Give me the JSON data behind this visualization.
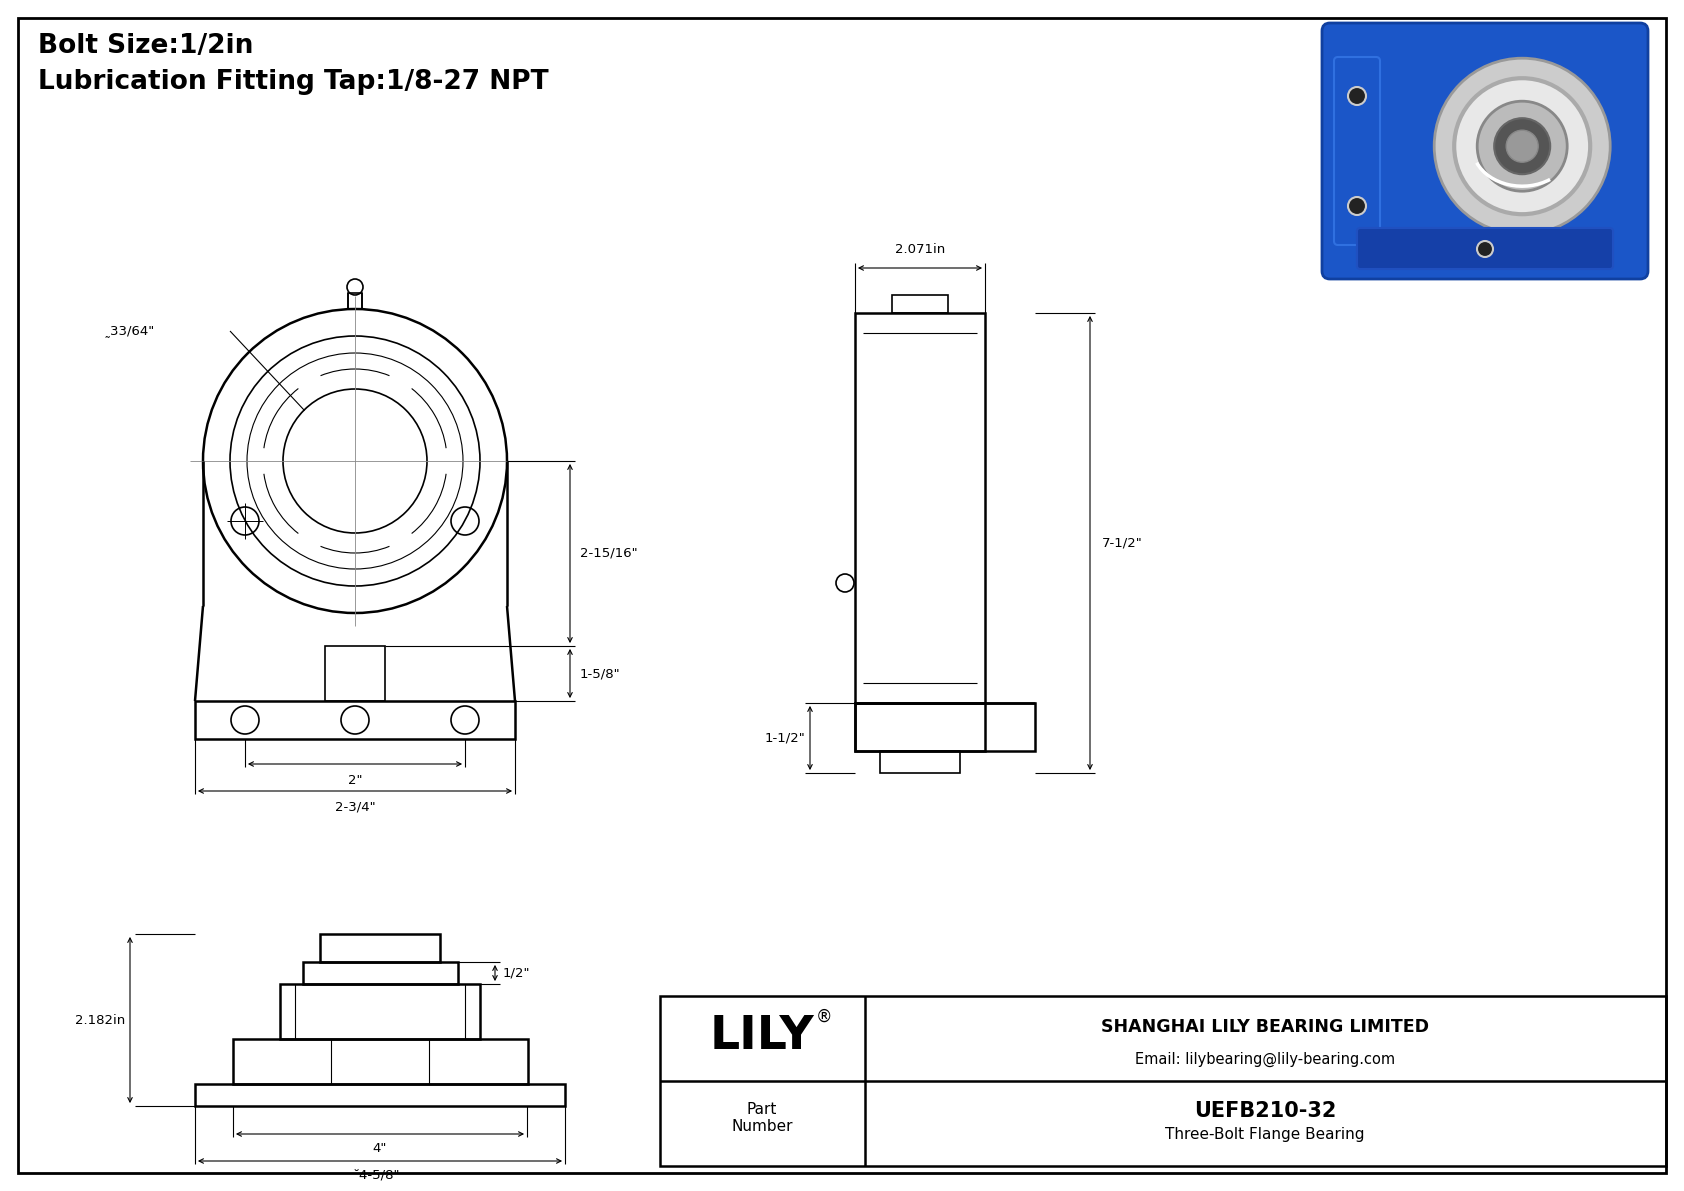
{
  "bg_color": "#ffffff",
  "line_color": "#000000",
  "title_line1": "Bolt Size:1/2in",
  "title_line2": "Lubrication Fitting Tap:1/8-27 NPT",
  "company": "SHANGHAI LILY BEARING LIMITED",
  "email": "Email: lilybearing@lily-bearing.com",
  "part_number": "UEFB210-32",
  "part_desc": "Three-Bolt Flange Bearing",
  "part_label": "Part\nNumber",
  "lily_text": "LILY",
  "dims_front": {
    "bore_dia": "̰33/64\"",
    "height": "2-15/16\"",
    "bolt_center_h": "1-5/8\"",
    "bolt_span": "2\"",
    "base_width": "2-3/4\""
  },
  "dims_side": {
    "width": "2.071in",
    "total_height": "7-1/2\"",
    "base_height": "1-1/2\""
  },
  "dims_top": {
    "depth": "2.182in",
    "slot_width": "1/2\"",
    "bolt_span": "4\"",
    "dia_base": "̆4-5/8\""
  }
}
